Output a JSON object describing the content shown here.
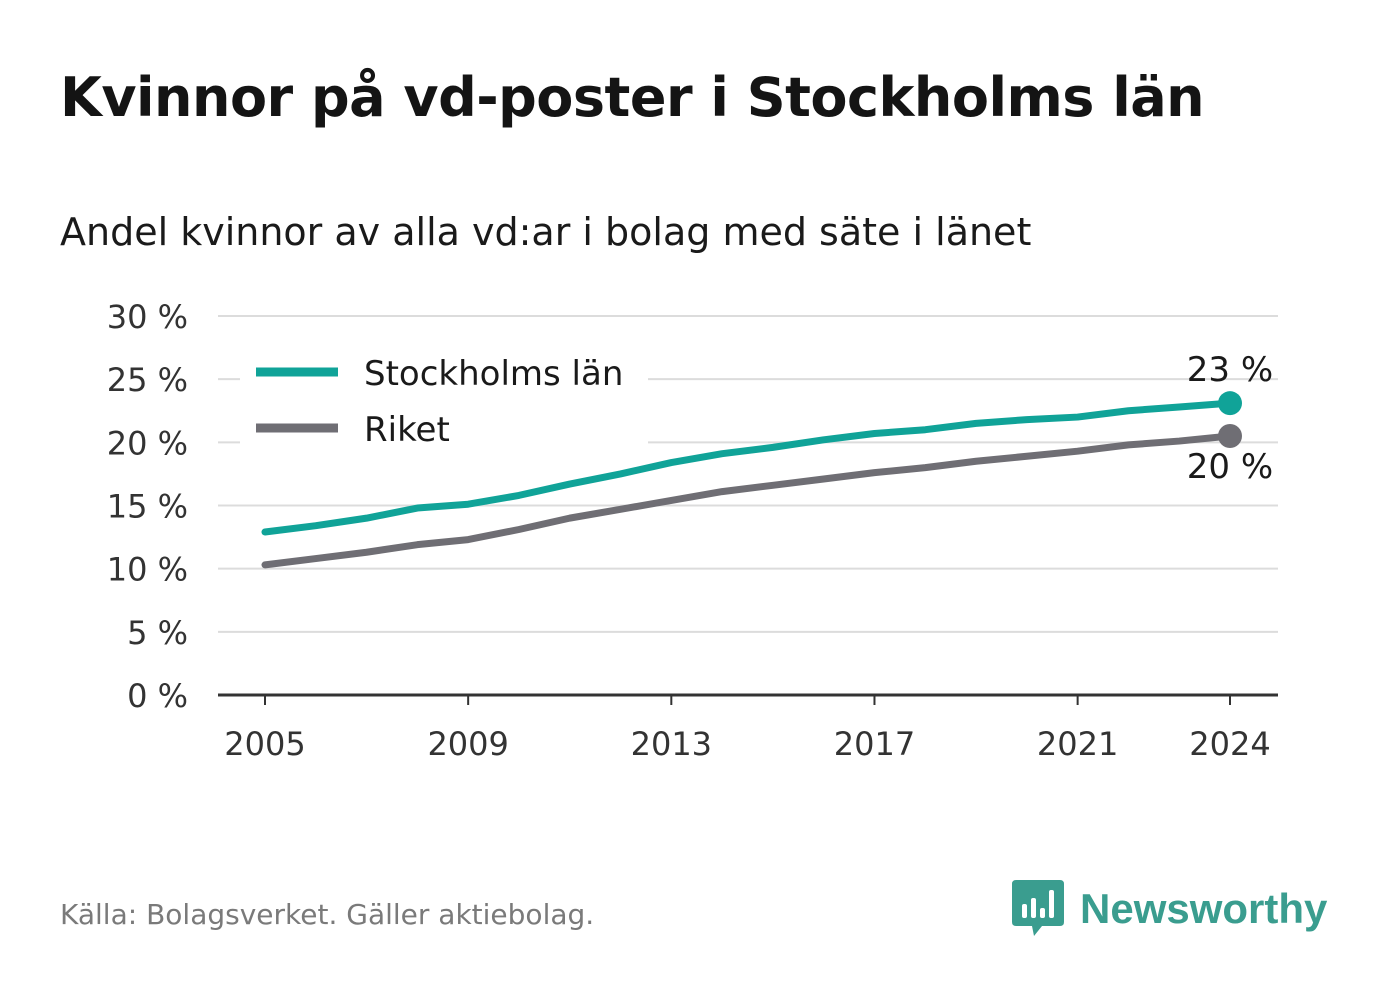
{
  "header": {
    "title": "Kvinnor på vd-poster i Stockholms län",
    "subtitle": "Andel kvinnor av alla vd:ar i bolag med säte i länet"
  },
  "footer": {
    "source": "Källa: Bolagsverket. Gäller aktiebolag.",
    "brand": "Newsworthy",
    "brand_icon": "bar-chart-speech-bubble-icon"
  },
  "colors": {
    "stockholm": "#10a398",
    "riket": "#6f6e74",
    "grid": "#dcdcdc",
    "axis": "#333333",
    "brand": "#3a9d8f"
  },
  "chart_data": {
    "type": "line",
    "x": [
      2005,
      2006,
      2007,
      2008,
      2009,
      2010,
      2011,
      2012,
      2013,
      2014,
      2015,
      2016,
      2017,
      2018,
      2019,
      2020,
      2021,
      2022,
      2023,
      2024
    ],
    "x_ticks": [
      "2005",
      "2009",
      "2013",
      "2017",
      "2021",
      "2024"
    ],
    "y_ticks": [
      "0 %",
      "5 %",
      "10 %",
      "15 %",
      "20 %",
      "25 %",
      "30 %"
    ],
    "ylim": [
      0,
      30
    ],
    "grid": true,
    "legend_position": "top-left",
    "series": [
      {
        "name": "Stockholms län",
        "values": [
          12.9,
          13.4,
          14.0,
          14.8,
          15.1,
          15.8,
          16.7,
          17.5,
          18.4,
          19.1,
          19.6,
          20.2,
          20.7,
          21.0,
          21.5,
          21.8,
          22.0,
          22.5,
          22.8,
          23.1
        ],
        "end_label": "23 %"
      },
      {
        "name": "Riket",
        "values": [
          10.3,
          10.8,
          11.3,
          11.9,
          12.3,
          13.1,
          14.0,
          14.7,
          15.4,
          16.1,
          16.6,
          17.1,
          17.6,
          18.0,
          18.5,
          18.9,
          19.3,
          19.8,
          20.1,
          20.5
        ],
        "end_label": "20 %"
      }
    ]
  }
}
